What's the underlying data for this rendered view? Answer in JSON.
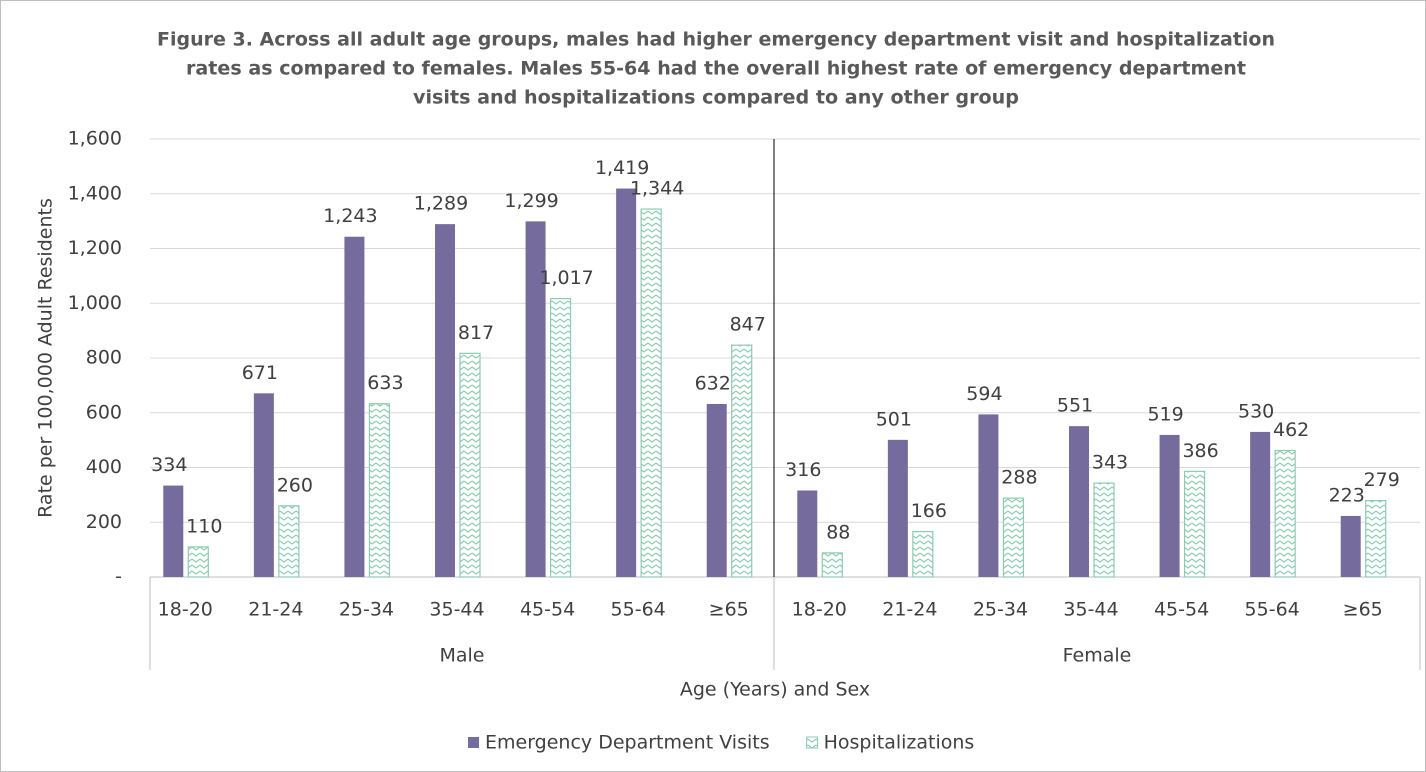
{
  "chart_data": {
    "type": "bar",
    "title": [
      "Figure 3. Across all adult age groups, males had higher emergency department visit and hospitalization",
      "rates as compared to females. Males 55-64 had the overall highest rate of emergency department",
      "visits and hospitalizations compared to any other group"
    ],
    "x_label": "Age (Years) and Sex",
    "y_label": "Rate per 100,000 Adult Residents",
    "groups": [
      {
        "name": "Male",
        "categories": [
          "18-20",
          "21-24",
          "25-34",
          "35-44",
          "45-54",
          "55-64",
          "≥65"
        ]
      },
      {
        "name": "Female",
        "categories": [
          "18-20",
          "21-24",
          "25-34",
          "35-44",
          "45-54",
          "55-64",
          "≥65"
        ]
      }
    ],
    "series": [
      {
        "name": "Emergency Department Visits",
        "color": "#756b9c",
        "pattern": "solid",
        "values": [
          334,
          671,
          1243,
          1289,
          1299,
          1419,
          632,
          316,
          501,
          594,
          551,
          519,
          530,
          223
        ],
        "value_labels": [
          "334",
          "671",
          "1,243",
          "1,289",
          "1,299",
          "1,419",
          "632",
          "316",
          "501",
          "594",
          "551",
          "519",
          "530",
          "223"
        ]
      },
      {
        "name": "Hospitalizations",
        "color": "#8ecbb2",
        "pattern": "zigzag",
        "values": [
          110,
          260,
          633,
          817,
          1017,
          1344,
          847,
          88,
          166,
          288,
          343,
          386,
          462,
          279
        ],
        "value_labels": [
          "110",
          "260",
          "633",
          "817",
          "1,017",
          "1,344",
          "847",
          "88",
          "166",
          "288",
          "343",
          "386",
          "462",
          "279"
        ]
      }
    ],
    "ylim": [
      0,
      1600
    ],
    "yticks": [
      {
        "value": 0,
        "label": "-"
      },
      200,
      400,
      600,
      800,
      {
        "value": 1000,
        "label": "1,000"
      },
      {
        "value": 1200,
        "label": "1,200"
      },
      {
        "value": 1400,
        "label": "1,400"
      },
      {
        "value": 1600,
        "label": "1,600"
      }
    ],
    "grid": true,
    "legend": "bottom"
  }
}
